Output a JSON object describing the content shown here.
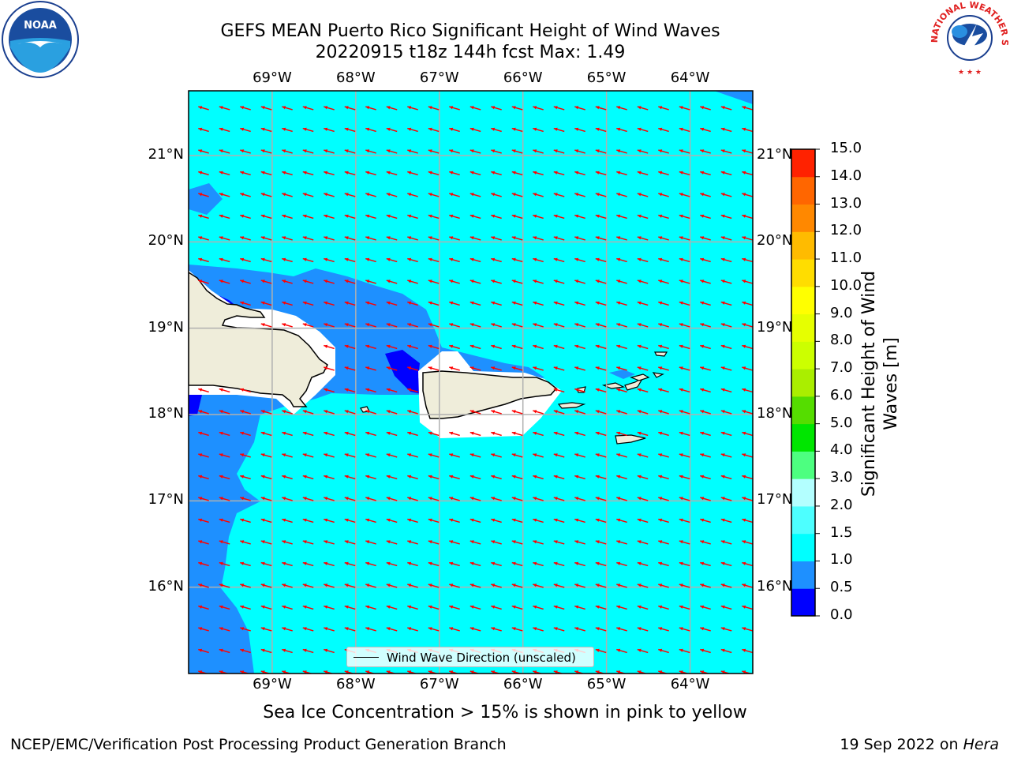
{
  "title": {
    "line1": "GEFS MEAN Puerto Rico Significant Height of Wind Waves",
    "line2": "20220915 t18z 144h fcst   Max: 1.49"
  },
  "map": {
    "lon_range": [
      -70.0,
      -63.25
    ],
    "lat_range": [
      15.0,
      21.75
    ],
    "lon_ticks": [
      {
        "value": -69,
        "label": "69°W"
      },
      {
        "value": -68,
        "label": "68°W"
      },
      {
        "value": -67,
        "label": "67°W"
      },
      {
        "value": -66,
        "label": "66°W"
      },
      {
        "value": -65,
        "label": "65°W"
      },
      {
        "value": -64,
        "label": "64°W"
      }
    ],
    "lat_ticks": [
      {
        "value": 21,
        "label": "21°N"
      },
      {
        "value": 20,
        "label": "20°N"
      },
      {
        "value": 19,
        "label": "19°N"
      },
      {
        "value": 18,
        "label": "18°N"
      },
      {
        "value": 17,
        "label": "17°N"
      },
      {
        "value": 16,
        "label": "16°N"
      }
    ],
    "grid": true,
    "wave_direction_from": "east-southeast",
    "arrow_color": "#ff0000",
    "land_color": "#efedda",
    "colors": {
      "0.0-0.5": "#0000ff",
      "0.5-1.0": "#1e90ff",
      "1.0-1.5": "#00ffff"
    }
  },
  "legend": {
    "label": "Wind Wave Direction (unscaled)",
    "placement": "lower-center"
  },
  "colorbar": {
    "label_line1": "Significant Height of Wind",
    "label_line2": "Waves [m]",
    "ticks": [
      "0.0",
      "0.5",
      "1.0",
      "1.5",
      "2.0",
      "3.0",
      "4.0",
      "5.0",
      "6.0",
      "7.0",
      "8.0",
      "9.0",
      "10.0",
      "11.0",
      "12.0",
      "13.0",
      "14.0",
      "15.0"
    ],
    "colors": [
      "#0000ff",
      "#1e90ff",
      "#00ffff",
      "#4dffff",
      "#b3ffff",
      "#4dff80",
      "#00e600",
      "#55dd00",
      "#aaee00",
      "#ccff00",
      "#e6ff00",
      "#ffff00",
      "#ffdd00",
      "#ffbb00",
      "#ff8800",
      "#ff6600",
      "#ff2200"
    ]
  },
  "caption": "Sea Ice Concentration > 15% is shown in pink to yellow",
  "footer": {
    "left": "NCEP/EMC/Verification Post Processing Product Generation Branch",
    "right_prefix": "19 Sep 2022 on ",
    "right_host": "Hera"
  },
  "logos": {
    "left": {
      "name": "noaa-logo",
      "text": "NOAA"
    },
    "right": {
      "name": "nws-logo",
      "text": "NATIONAL WEATHER SERVICE"
    }
  }
}
